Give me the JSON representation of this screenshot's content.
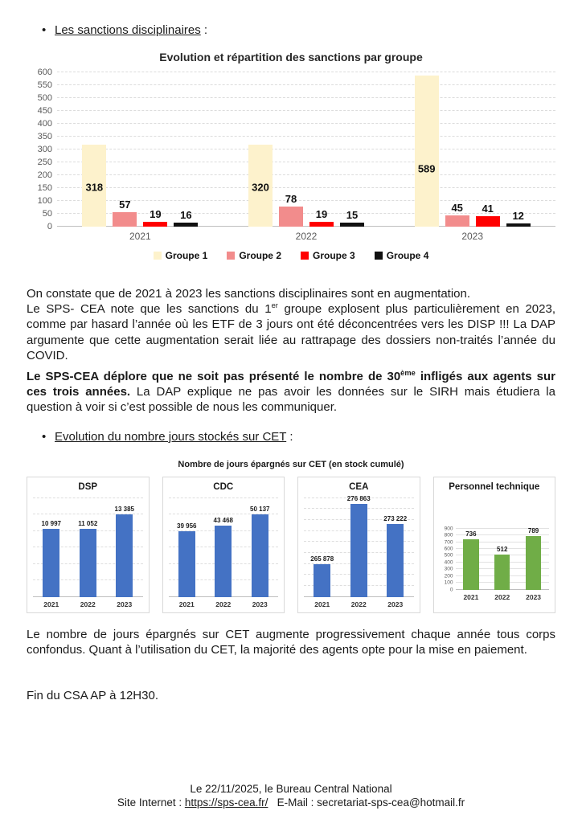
{
  "document": {
    "bullet_sanctions": {
      "label": "Les sanctions disciplinaires",
      "suffix": " :"
    },
    "bullet_cet": {
      "label": "Evolution du nombre jours stockés sur CET",
      "suffix": " :"
    },
    "para1": {
      "line1": "On constate que de 2021 à 2023 les sanctions disciplinaires sont en augmentation.",
      "line2_pre": "Le SPS- CEA note que les sanctions du 1",
      "line2_sup": "er",
      "line2_post": " groupe explosent plus particulièrement en 2023, comme par hasard l’année où les ETF de 3 jours ont été déconcentrées vers les DISP !!! La DAP argumente que cette augmentation serait liée au rattrapage des dossiers non-traités l’année du COVID."
    },
    "para2": {
      "bold_pre": "Le SPS-CEA déplore que ne soit pas présenté le nombre de 30",
      "bold_sup": "ème",
      "bold_post": " infligés aux agents sur ces trois années.",
      "normal": " La DAP explique ne pas avoir les données sur le SIRH mais étudiera la question à voir si c’est possible de nous les communiquer."
    },
    "para3": "Le nombre de jours épargnés sur CET augmente progressivement chaque année tous corps confondus. Quant à l’utilisation du CET, la majorité des agents opte pour la mise en paiement.",
    "para4": "Fin du CSA AP à 12H30.",
    "footer": {
      "line1": "Le 22/11/2025, le Bureau Central National",
      "line2_pre": "Site Internet : ",
      "link": "https://sps-cea.fr/",
      "line2_post": "   E-Mail : secretariat-sps-cea@hotmail.fr"
    }
  },
  "chart_data": [
    {
      "type": "bar",
      "title": "Evolution et répartition des sanctions par groupe",
      "categories": [
        "2021",
        "2022",
        "2023"
      ],
      "series": [
        {
          "name": "Groupe 1",
          "color": "#FDF2CC",
          "values": [
            318,
            320,
            589
          ]
        },
        {
          "name": "Groupe 2",
          "color": "#F28C8C",
          "values": [
            57,
            78,
            45
          ]
        },
        {
          "name": "Groupe 3",
          "color": "#FF0000",
          "values": [
            19,
            19,
            41
          ]
        },
        {
          "name": "Groupe 4",
          "color": "#111111",
          "values": [
            16,
            15,
            12
          ]
        }
      ],
      "ylim": [
        0,
        600
      ],
      "ytick_step": 50,
      "grid": true,
      "legend_position": "bottom"
    },
    {
      "type": "bar",
      "title": "Nombre de jours épargnés sur CET (en stock cumulé)",
      "categories": [
        "2021",
        "2022",
        "2023"
      ],
      "panels": [
        {
          "title": "DSP",
          "values": [
            10997,
            11052,
            13385
          ],
          "labels": [
            "10 997",
            "11 052",
            "13 385"
          ],
          "bar_color": "#4472C4",
          "ylim": [
            0,
            16000
          ],
          "n_gridlines": 6
        },
        {
          "title": "CDC",
          "values": [
            39956,
            43468,
            50137
          ],
          "labels": [
            "39 956",
            "43 468",
            "50 137"
          ],
          "bar_color": "#4472C4",
          "ylim": [
            0,
            60000
          ],
          "n_gridlines": 6
        },
        {
          "title": "CEA",
          "values": [
            265878,
            276863,
            273222
          ],
          "labels": [
            "265 878",
            "276 863",
            "273 222"
          ],
          "bar_color": "#4472C4",
          "ylim": [
            260000,
            278000
          ],
          "n_gridlines": 9
        },
        {
          "title": "Personnel technique",
          "values": [
            736,
            512,
            789
          ],
          "labels": [
            "736",
            "512",
            "789"
          ],
          "bar_color": "#70AD47",
          "ylim": [
            0,
            900
          ],
          "yticks": [
            900,
            800,
            700,
            600,
            500,
            400,
            300,
            200,
            100,
            0
          ],
          "compact": true
        }
      ]
    }
  ]
}
